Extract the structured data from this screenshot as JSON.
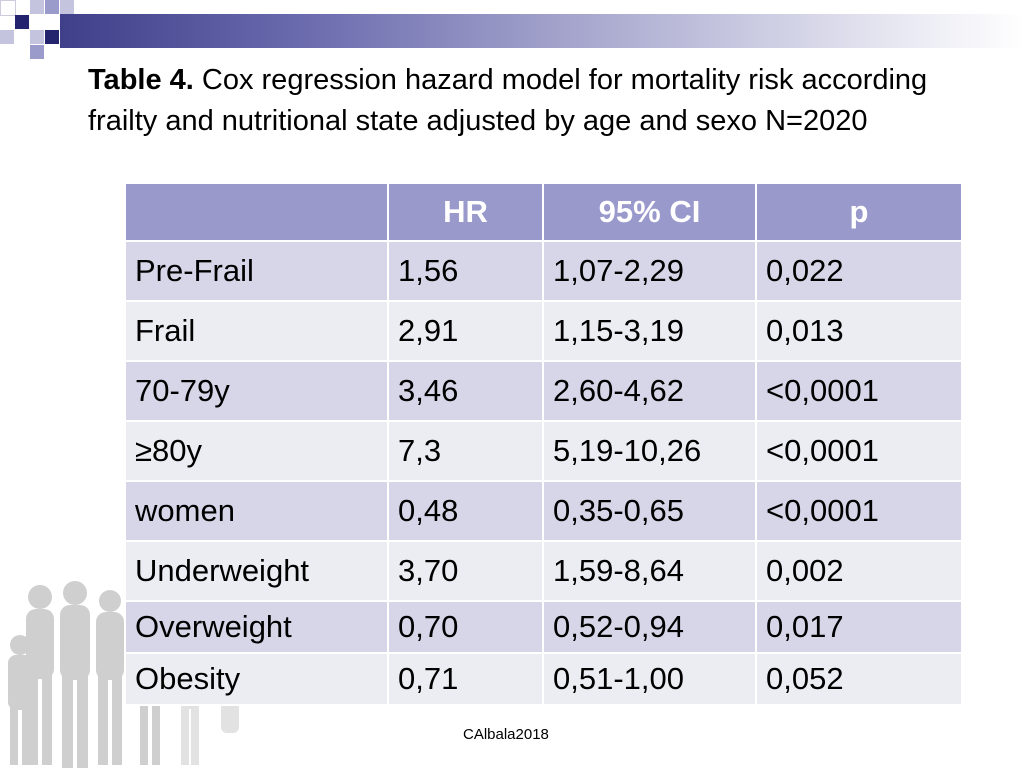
{
  "slide": {
    "title_bold": "Table 4.",
    "title_rest": " Cox regression hazard model for mortality risk according frailty and nutritional state adjusted by age and sexo N=2020",
    "footer": "CAlbala2018"
  },
  "table": {
    "headers": [
      "",
      "HR",
      "95% CI",
      "p"
    ],
    "rows": [
      [
        "Pre-Frail",
        "1,56",
        "1,07-2,29",
        "0,022"
      ],
      [
        "Frail",
        "2,91",
        "1,15-3,19",
        "0,013"
      ],
      [
        "70-79y",
        "3,46",
        "2,60-4,62",
        "<0,0001"
      ],
      [
        "≥80y",
        "7,3",
        "5,19-10,26",
        "<0,0001"
      ],
      [
        "women",
        "0,48",
        "0,35-0,65",
        "<0,0001"
      ],
      [
        "Underweight",
        "3,70",
        "1,59-8,64",
        "0,002"
      ],
      [
        "Overweight",
        "0,70",
        "0,52-0,94",
        "0,017"
      ],
      [
        "Obesity",
        "0,71",
        "0,51-1,00",
        "0,052"
      ]
    ]
  },
  "colors": {
    "header_bg": "#9999cc",
    "row_dark": "#d6d6e8",
    "row_light": "#ececf3",
    "accent": "#3f3f8a"
  }
}
